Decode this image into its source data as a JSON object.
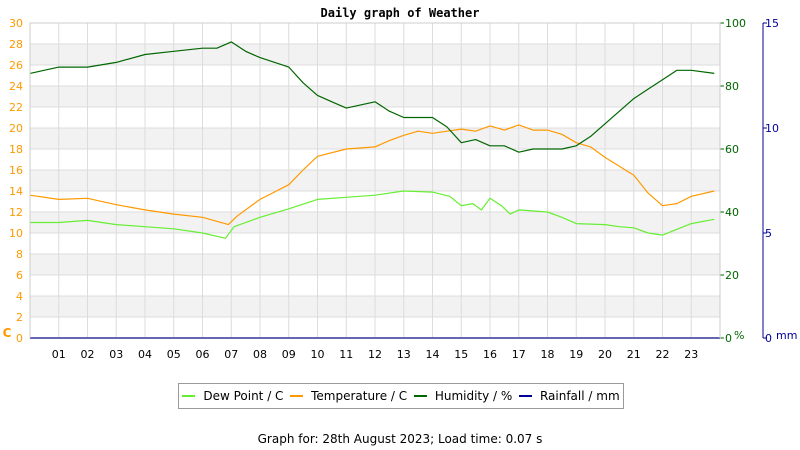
{
  "chart_data": {
    "type": "line",
    "title": "Daily graph of Weather",
    "x_ticks": [
      "01",
      "02",
      "03",
      "04",
      "05",
      "06",
      "07",
      "08",
      "09",
      "10",
      "11",
      "12",
      "13",
      "14",
      "15",
      "16",
      "17",
      "18",
      "19",
      "20",
      "21",
      "22",
      "23"
    ],
    "xlim": [
      0,
      24
    ],
    "axes": {
      "temperature": {
        "unit_label": "C",
        "ticks": [
          0,
          2,
          4,
          6,
          8,
          10,
          12,
          14,
          16,
          18,
          20,
          22,
          24,
          26,
          28,
          30
        ],
        "range": [
          0,
          30
        ],
        "color": "#ff9900"
      },
      "humidity": {
        "unit_label": "%",
        "ticks": [
          0,
          20,
          40,
          60,
          80,
          100
        ],
        "range": [
          0,
          100
        ],
        "color": "#006600"
      },
      "rainfall": {
        "unit_label": "mm",
        "ticks": [
          0,
          5,
          10,
          15
        ],
        "range": [
          0,
          15
        ],
        "color": "#000099"
      }
    },
    "grid": true,
    "series": [
      {
        "name": "Dew Point / C",
        "axis": "temperature",
        "color": "#66ee33",
        "points": [
          [
            0,
            11.0
          ],
          [
            1,
            11.0
          ],
          [
            2,
            11.2
          ],
          [
            3,
            10.8
          ],
          [
            4,
            10.6
          ],
          [
            5,
            10.4
          ],
          [
            6,
            10.0
          ],
          [
            6.8,
            9.5
          ],
          [
            7.1,
            10.6
          ],
          [
            8,
            11.5
          ],
          [
            9,
            12.3
          ],
          [
            10,
            13.2
          ],
          [
            11,
            13.4
          ],
          [
            12,
            13.6
          ],
          [
            13,
            14.0
          ],
          [
            14,
            13.9
          ],
          [
            14.6,
            13.5
          ],
          [
            15,
            12.6
          ],
          [
            15.4,
            12.8
          ],
          [
            15.7,
            12.2
          ],
          [
            16,
            13.3
          ],
          [
            16.4,
            12.6
          ],
          [
            16.7,
            11.8
          ],
          [
            17,
            12.2
          ],
          [
            18,
            12.0
          ],
          [
            18.5,
            11.5
          ],
          [
            19,
            10.9
          ],
          [
            20,
            10.8
          ],
          [
            20.5,
            10.6
          ],
          [
            21,
            10.5
          ],
          [
            21.5,
            10.0
          ],
          [
            22,
            9.8
          ],
          [
            23,
            10.9
          ],
          [
            23.8,
            11.3
          ]
        ]
      },
      {
        "name": "Temperature / C",
        "axis": "temperature",
        "color": "#ff9900",
        "points": [
          [
            0,
            13.6
          ],
          [
            1,
            13.2
          ],
          [
            2,
            13.3
          ],
          [
            3,
            12.7
          ],
          [
            4,
            12.2
          ],
          [
            5,
            11.8
          ],
          [
            6,
            11.5
          ],
          [
            6.9,
            10.8
          ],
          [
            7.2,
            11.6
          ],
          [
            8,
            13.2
          ],
          [
            9,
            14.6
          ],
          [
            9.5,
            16.0
          ],
          [
            10,
            17.3
          ],
          [
            11,
            18.0
          ],
          [
            12,
            18.2
          ],
          [
            12.5,
            18.8
          ],
          [
            13,
            19.3
          ],
          [
            13.5,
            19.7
          ],
          [
            14,
            19.5
          ],
          [
            14.5,
            19.7
          ],
          [
            15,
            19.9
          ],
          [
            15.5,
            19.7
          ],
          [
            16,
            20.2
          ],
          [
            16.5,
            19.8
          ],
          [
            17,
            20.3
          ],
          [
            17.5,
            19.8
          ],
          [
            18,
            19.8
          ],
          [
            18.5,
            19.4
          ],
          [
            19,
            18.6
          ],
          [
            19.5,
            18.2
          ],
          [
            20,
            17.2
          ],
          [
            21,
            15.5
          ],
          [
            21.5,
            13.8
          ],
          [
            22,
            12.6
          ],
          [
            22.5,
            12.8
          ],
          [
            23,
            13.5
          ],
          [
            23.8,
            14.0
          ]
        ]
      },
      {
        "name": "Humidity / %",
        "axis": "humidity",
        "color": "#006600",
        "points": [
          [
            0,
            84
          ],
          [
            1,
            86
          ],
          [
            2,
            86
          ],
          [
            3,
            87.5
          ],
          [
            4,
            90
          ],
          [
            5,
            91
          ],
          [
            6,
            92
          ],
          [
            6.5,
            92
          ],
          [
            7,
            94
          ],
          [
            7.5,
            91
          ],
          [
            8,
            89
          ],
          [
            9,
            86
          ],
          [
            9.5,
            81
          ],
          [
            10,
            77
          ],
          [
            10.5,
            75
          ],
          [
            11,
            73
          ],
          [
            12,
            75
          ],
          [
            12.5,
            72
          ],
          [
            13,
            70
          ],
          [
            14,
            70
          ],
          [
            14.5,
            67
          ],
          [
            15,
            62
          ],
          [
            15.5,
            63
          ],
          [
            16,
            61
          ],
          [
            16.5,
            61
          ],
          [
            17,
            59
          ],
          [
            17.5,
            60
          ],
          [
            18,
            60
          ],
          [
            18.5,
            60
          ],
          [
            19,
            61
          ],
          [
            19.5,
            64
          ],
          [
            20,
            68
          ],
          [
            21,
            76
          ],
          [
            21.5,
            79
          ],
          [
            22,
            82
          ],
          [
            22.5,
            85
          ],
          [
            23,
            85
          ],
          [
            23.8,
            84
          ]
        ]
      },
      {
        "name": "Rainfall / mm",
        "axis": "rainfall",
        "color": "#000099",
        "points": [
          [
            0,
            0
          ],
          [
            24,
            0
          ]
        ]
      }
    ]
  },
  "legend": {
    "items": [
      {
        "label": "Dew Point / C",
        "color": "#66ee33"
      },
      {
        "label": "Temperature / C",
        "color": "#ff9900"
      },
      {
        "label": "Humidity / %",
        "color": "#006600"
      },
      {
        "label": "Rainfall / mm",
        "color": "#000099"
      }
    ]
  },
  "footer": {
    "text": "Graph for: 28th August 2023; Load time: 0.07 s"
  }
}
